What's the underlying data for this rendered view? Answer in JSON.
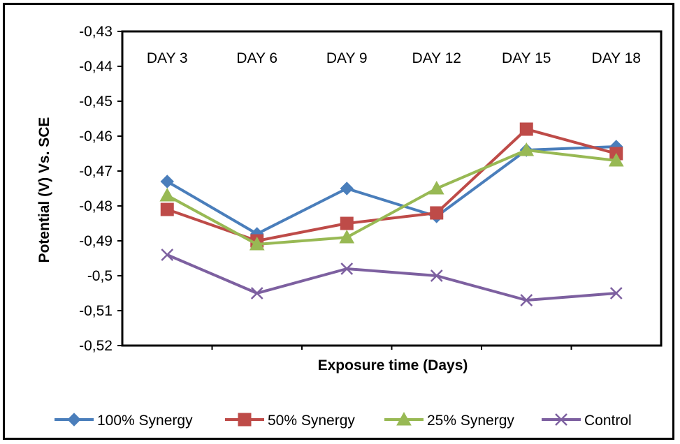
{
  "chart_data": {
    "type": "line",
    "categories": [
      "DAY 3",
      "DAY 6",
      "DAY 9",
      "DAY 12",
      "DAY 15",
      "DAY 18"
    ],
    "xlabel": "Exposure time (Days)",
    "ylabel": "Potential (V) Vs. SCE",
    "ylim": [
      -0.52,
      -0.43
    ],
    "yticks": [
      -0.43,
      -0.44,
      -0.45,
      -0.46,
      -0.47,
      -0.48,
      -0.49,
      -0.5,
      -0.51,
      -0.52
    ],
    "ytick_labels": [
      "-0,43",
      "-0,44",
      "-0,45",
      "-0,46",
      "-0,47",
      "-0,48",
      "-0,49",
      "-0,5",
      "-0,51",
      "-0,52"
    ],
    "grid": false,
    "category_labels_position": "top inside plot",
    "legend_position": "bottom",
    "series": [
      {
        "name": "100% Synergy",
        "values": [
          -0.473,
          -0.488,
          -0.475,
          -0.483,
          -0.464,
          -0.463
        ],
        "color": "#4a7ebb",
        "marker": "diamond"
      },
      {
        "name": "50% Synergy",
        "values": [
          -0.481,
          -0.49,
          -0.485,
          -0.482,
          -0.458,
          -0.465
        ],
        "color": "#be4b48",
        "marker": "square"
      },
      {
        "name": "25% Synergy",
        "values": [
          -0.477,
          -0.491,
          -0.489,
          -0.475,
          -0.464,
          -0.467
        ],
        "color": "#98b954",
        "marker": "triangle"
      },
      {
        "name": "Control",
        "values": [
          -0.494,
          -0.505,
          -0.498,
          -0.5,
          -0.507,
          -0.505
        ],
        "color": "#7d60a0",
        "marker": "x"
      }
    ]
  }
}
